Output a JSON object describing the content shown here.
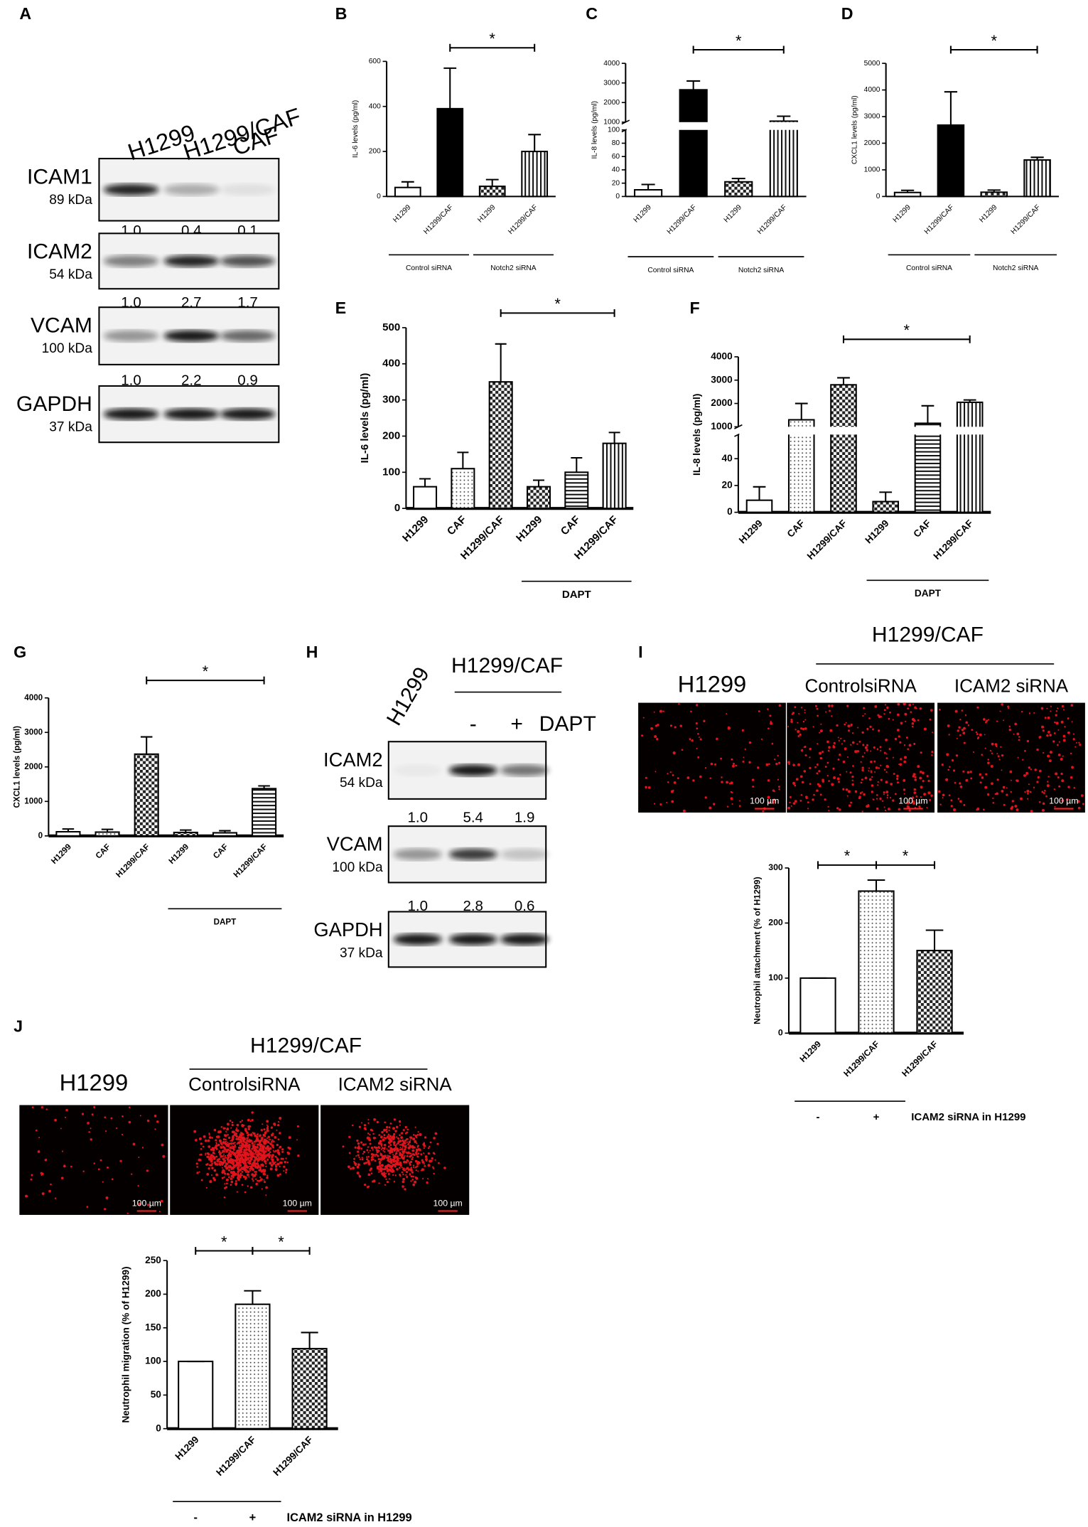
{
  "panel_letters": [
    "A",
    "B",
    "C",
    "D",
    "E",
    "F",
    "G",
    "H",
    "I",
    "J"
  ],
  "chart_data": [
    {
      "type": "bar",
      "ylabel": "IL-6 levels (pg/ml)",
      "categories": [
        "H1299",
        "H1299/CAF",
        "H1299",
        "H1299/CAF"
      ],
      "values": [
        40,
        390,
        45,
        200
      ],
      "errors": [
        25,
        180,
        30,
        75
      ],
      "patterns": [
        "white",
        "black",
        "checker",
        "vstripe"
      ],
      "ylim": [
        0,
        600
      ],
      "yticks": [
        0,
        200,
        400,
        600
      ],
      "groups": [
        {
          "label": "Control siRNA",
          "span": [
            0,
            1
          ]
        },
        {
          "label": "Notch2 siRNA",
          "span": [
            2,
            3
          ]
        }
      ],
      "significance": [
        {
          "label": "*",
          "between": [
            1,
            3
          ]
        }
      ]
    },
    {
      "type": "bar",
      "ylabel": "IL-8 levels (pg/ml)",
      "categories": [
        "H1299",
        "H1299/CAF",
        "H1299",
        "H1299/CAF"
      ],
      "values": [
        10,
        2650,
        22,
        1050
      ],
      "errors": [
        8,
        450,
        5,
        250
      ],
      "patterns": [
        "white",
        "black",
        "checker",
        "vstripe"
      ],
      "ylim": [
        0,
        4000
      ],
      "ybreak": [
        100,
        1000
      ],
      "yticks": [
        0,
        20,
        40,
        60,
        80,
        100,
        1000,
        2000,
        3000,
        4000
      ],
      "groups": [
        {
          "label": "Control  siRNA",
          "span": [
            0,
            1
          ]
        },
        {
          "label": "Notch2 siRNA",
          "span": [
            2,
            3
          ]
        }
      ],
      "significance": [
        {
          "label": "*",
          "between": [
            1,
            3
          ]
        }
      ]
    },
    {
      "type": "bar",
      "ylabel": "CXCL1 levels (pg/ml)",
      "categories": [
        "H1299",
        "H1299/CAF",
        "H1299",
        "H1299/CAF"
      ],
      "values": [
        150,
        2680,
        160,
        1370
      ],
      "errors": [
        80,
        1250,
        80,
        100
      ],
      "patterns": [
        "white",
        "black",
        "checker",
        "vstripe"
      ],
      "ylim": [
        0,
        5000
      ],
      "yticks": [
        0,
        1000,
        2000,
        3000,
        4000,
        5000
      ],
      "groups": [
        {
          "label": "Control siRNA",
          "span": [
            0,
            1
          ]
        },
        {
          "label": "Notch2 siRNA",
          "span": [
            2,
            3
          ]
        }
      ],
      "significance": [
        {
          "label": "*",
          "between": [
            1,
            3
          ]
        }
      ]
    },
    {
      "type": "bar",
      "ylabel": "IL-6 levels (pg/ml)",
      "categories": [
        "H1299",
        "CAF",
        "H1299/CAF",
        "H1299",
        "CAF",
        "H1299/CAF"
      ],
      "values": [
        60,
        110,
        350,
        60,
        100,
        180
      ],
      "errors": [
        22,
        45,
        105,
        18,
        40,
        30
      ],
      "patterns": [
        "white",
        "dots",
        "checker",
        "checker",
        "hstripe",
        "vstripe"
      ],
      "ylim": [
        0,
        500
      ],
      "yticks": [
        0,
        100,
        200,
        300,
        400,
        500
      ],
      "groups": [
        {
          "label": "DAPT",
          "span": [
            3,
            5
          ]
        }
      ],
      "significance": [
        {
          "label": "*",
          "between": [
            2,
            5
          ]
        }
      ]
    },
    {
      "type": "bar",
      "ylabel": "IL-8 levels (pg/ml)",
      "categories": [
        "H1299",
        "CAF",
        "H1299/CAF",
        "H1299",
        "CAF",
        "H1299/CAF"
      ],
      "values": [
        9,
        1300,
        2800,
        8,
        1150,
        2050
      ],
      "errors": [
        10,
        700,
        300,
        7,
        750,
        100
      ],
      "patterns": [
        "white",
        "dots",
        "checker",
        "checker",
        "hstripe",
        "vstripe"
      ],
      "ylim": [
        0,
        4000
      ],
      "ybreak": [
        58,
        1000
      ],
      "yticks": [
        0,
        20,
        40,
        1000,
        2000,
        3000,
        4000
      ],
      "groups": [
        {
          "label": "DAPT",
          "span": [
            3,
            5
          ]
        }
      ],
      "significance": [
        {
          "label": "*",
          "between": [
            2,
            5
          ]
        }
      ]
    },
    {
      "type": "bar",
      "ylabel": "CXCL1 levels (pg/ml)",
      "categories": [
        "H1299",
        "CAF",
        "H1299/CAF",
        "H1299",
        "CAF",
        "H1299/CAF"
      ],
      "values": [
        120,
        110,
        2370,
        100,
        90,
        1370
      ],
      "errors": [
        80,
        80,
        500,
        70,
        60,
        80
      ],
      "patterns": [
        "white",
        "dots",
        "checker",
        "checker",
        "hstripe",
        "hstripe"
      ],
      "ylim": [
        0,
        4000
      ],
      "yticks": [
        0,
        1000,
        2000,
        3000,
        4000
      ],
      "groups": [
        {
          "label": "DAPT",
          "span": [
            3,
            5
          ]
        }
      ],
      "significance": [
        {
          "label": "*",
          "between": [
            2,
            5
          ]
        }
      ]
    },
    {
      "type": "bar",
      "ylabel": "Neutrophil attachment (% of H1299)",
      "categories": [
        "H1299",
        "H1299/CAF",
        "H1299/CAF"
      ],
      "values": [
        100,
        258,
        150
      ],
      "errors": [
        0,
        20,
        37
      ],
      "patterns": [
        "white",
        "dots",
        "checker"
      ],
      "ylim": [
        0,
        300
      ],
      "yticks": [
        0,
        100,
        200,
        300
      ],
      "condition": {
        "label": "ICAM2 siRNA in H1299",
        "signs": [
          "-",
          "+"
        ]
      },
      "significance": [
        {
          "label": "*",
          "between": [
            0,
            1
          ]
        },
        {
          "label": "*",
          "between": [
            1,
            2
          ]
        }
      ]
    },
    {
      "type": "bar",
      "ylabel": "Neutrophil migration (% of H1299)",
      "categories": [
        "H1299",
        "H1299/CAF",
        "H1299/CAF"
      ],
      "values": [
        100,
        185,
        119
      ],
      "errors": [
        0,
        20,
        24
      ],
      "patterns": [
        "white",
        "dots",
        "checker"
      ],
      "ylim": [
        0,
        250
      ],
      "yticks": [
        0,
        50,
        100,
        150,
        200,
        250
      ],
      "condition": {
        "label": "ICAM2 siRNA in H1299",
        "signs": [
          "-",
          "+"
        ]
      },
      "significance": [
        {
          "label": "*",
          "between": [
            0,
            1
          ]
        },
        {
          "label": "*",
          "between": [
            1,
            2
          ]
        }
      ]
    }
  ],
  "blots": [
    {
      "lanes": [
        "H1299",
        "H1299/CAF",
        "CAF"
      ],
      "rows": [
        {
          "name": "ICAM1",
          "kda": "89 kDa",
          "ratios": [
            "1.0",
            "0.4",
            "0.1"
          ]
        },
        {
          "name": "ICAM2",
          "kda": "54 kDa",
          "ratios": [
            "1.0",
            "2.7",
            "1.7"
          ]
        },
        {
          "name": "VCAM",
          "kda": "100 kDa",
          "ratios": [
            "1.0",
            "2.2",
            "0.9"
          ]
        },
        {
          "name": "GAPDH",
          "kda": "37 kDa"
        }
      ]
    },
    {
      "lanes": [
        "H1299",
        "H1299/CAF"
      ],
      "treatment": {
        "signs": [
          "-",
          "+"
        ],
        "label": "DAPT"
      },
      "rows": [
        {
          "name": "ICAM2",
          "kda": "54 kDa",
          "ratios": [
            "1.0",
            "5.4",
            "1.9"
          ]
        },
        {
          "name": "VCAM",
          "kda": "100 kDa",
          "ratios": [
            "1.0",
            "2.8",
            "0.6"
          ]
        },
        {
          "name": "GAPDH",
          "kda": "37 kDa"
        }
      ]
    }
  ],
  "micrographs": [
    {
      "left": "H1299",
      "group": "H1299/CAF",
      "panels": [
        "ControlsiRNA",
        "ICAM2 siRNA"
      ],
      "scale": "100 µm"
    },
    {
      "left": "H1299",
      "group": "H1299/CAF",
      "panels": [
        "ControlsiRNA",
        "ICAM2 siRNA"
      ],
      "scale": "100 µm"
    }
  ]
}
